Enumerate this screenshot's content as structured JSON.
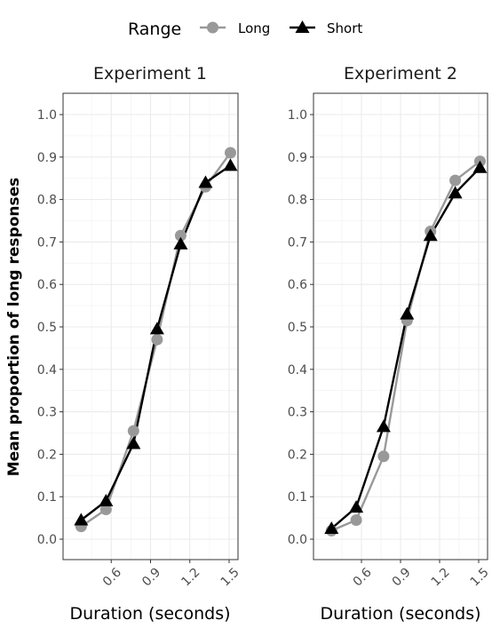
{
  "chart_data": {
    "type": "line",
    "legend": {
      "title": "Range",
      "position": "top",
      "entries": [
        {
          "name": "Long",
          "color": "#999999",
          "marker": "circle"
        },
        {
          "name": "Short",
          "color": "#000000",
          "marker": "triangle"
        }
      ]
    },
    "ylabel": "Mean proportion of long responses",
    "ylim": [
      0.0,
      1.0
    ],
    "yticks": [
      "0.0",
      "0.1",
      "0.2",
      "0.3",
      "0.4",
      "0.5",
      "0.6",
      "0.7",
      "0.8",
      "0.9",
      "1.0"
    ],
    "xlim": [
      0.3,
      1.5
    ],
    "xticks": [
      "0.6",
      "0.9",
      "1.2",
      "1.5"
    ],
    "grid": true,
    "panels": [
      {
        "title": "Experiment 1",
        "xlabel": "Duration (seconds)",
        "series": [
          {
            "name": "Long",
            "x": [
              0.37,
              0.56,
              0.77,
              0.95,
              1.13,
              1.32,
              1.51
            ],
            "y": [
              0.03,
              0.07,
              0.255,
              0.47,
              0.715,
              0.83,
              0.91
            ]
          },
          {
            "name": "Short",
            "x": [
              0.37,
              0.56,
              0.77,
              0.95,
              1.13,
              1.32,
              1.51
            ],
            "y": [
              0.045,
              0.09,
              0.225,
              0.495,
              0.695,
              0.84,
              0.88
            ]
          }
        ]
      },
      {
        "title": "Experiment 2",
        "xlabel": "Duration (seconds)",
        "series": [
          {
            "name": "Long",
            "x": [
              0.37,
              0.56,
              0.77,
              0.95,
              1.13,
              1.32,
              1.51
            ],
            "y": [
              0.02,
              0.045,
              0.195,
              0.515,
              0.725,
              0.845,
              0.89
            ]
          },
          {
            "name": "Short",
            "x": [
              0.37,
              0.56,
              0.77,
              0.95,
              1.13,
              1.32,
              1.51
            ],
            "y": [
              0.025,
              0.075,
              0.265,
              0.53,
              0.715,
              0.815,
              0.875
            ]
          }
        ]
      }
    ]
  }
}
